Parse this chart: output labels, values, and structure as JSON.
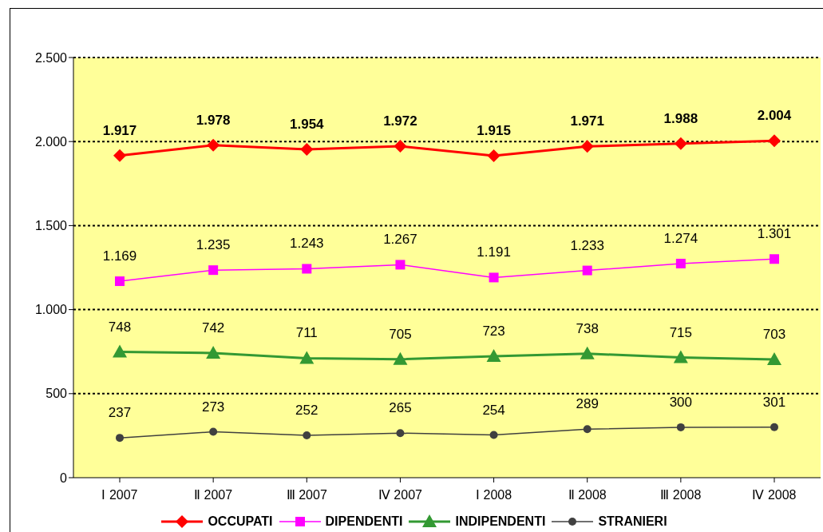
{
  "chart_data": {
    "type": "line",
    "categories": [
      "Ⅰ 2007",
      "Ⅱ 2007",
      "Ⅲ 2007",
      "Ⅳ 2007",
      "Ⅰ 2008",
      "Ⅱ 2008",
      "Ⅲ 2008",
      "Ⅳ 2008"
    ],
    "series": [
      {
        "name": "OCCUPATI",
        "color": "#ff0000",
        "marker": "diamond",
        "values": [
          1917,
          1978,
          1954,
          1972,
          1915,
          1971,
          1988,
          2004
        ],
        "value_labels": [
          "1.917",
          "1.978",
          "1.954",
          "1.972",
          "1.915",
          "1.971",
          "1.988",
          "2.004"
        ]
      },
      {
        "name": "DIPENDENTI",
        "color": "#ff00ff",
        "marker": "square",
        "values": [
          1169,
          1235,
          1243,
          1267,
          1191,
          1233,
          1274,
          1301
        ],
        "value_labels": [
          "1.169",
          "1.235",
          "1.243",
          "1.267",
          "1.191",
          "1.233",
          "1.274",
          "1.301"
        ]
      },
      {
        "name": "INDIPENDENTI",
        "color": "#339933",
        "marker": "triangle",
        "values": [
          748,
          742,
          711,
          705,
          723,
          738,
          715,
          703
        ],
        "value_labels": [
          "748",
          "742",
          "711",
          "705",
          "723",
          "738",
          "715",
          "703"
        ]
      },
      {
        "name": "STRANIERI",
        "color": "#404040",
        "marker": "circle",
        "values": [
          237,
          273,
          252,
          265,
          254,
          289,
          300,
          301
        ],
        "value_labels": [
          "237",
          "273",
          "252",
          "265",
          "254",
          "289",
          "300",
          "301"
        ]
      }
    ],
    "ylim": [
      0,
      2500
    ],
    "yticks": [
      {
        "value": 0,
        "label": "0"
      },
      {
        "value": 500,
        "label": "500"
      },
      {
        "value": 1000,
        "label": "1.000"
      },
      {
        "value": 1500,
        "label": "1.500"
      },
      {
        "value": 2000,
        "label": "2.000"
      },
      {
        "value": 2500,
        "label": "2.500"
      }
    ],
    "grid": "y",
    "legend": "bottom"
  }
}
